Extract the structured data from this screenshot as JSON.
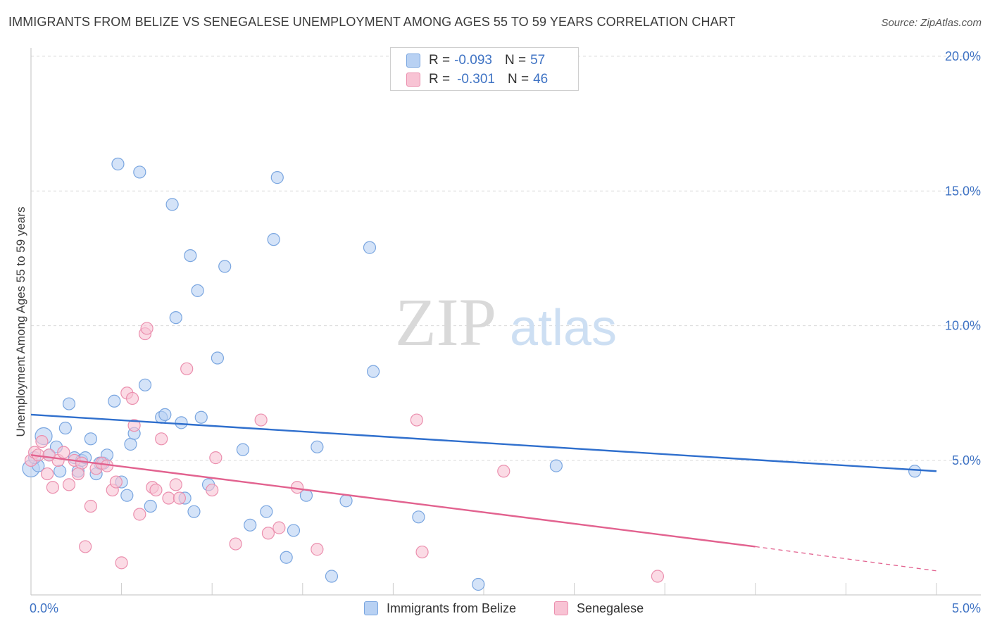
{
  "title": "IMMIGRANTS FROM BELIZE VS SENEGALESE UNEMPLOYMENT AMONG AGES 55 TO 59 YEARS CORRELATION CHART",
  "source": "Source: ZipAtlas.com",
  "watermark": {
    "zip": "ZIP",
    "atlas": "atlas"
  },
  "legend": {
    "rows": [
      {
        "r_label": "R =",
        "r_value": "-0.093",
        "n_label": "N =",
        "n_value": "57"
      },
      {
        "r_label": "R =",
        "r_value": "-0.301",
        "n_label": "N =",
        "n_value": "46"
      }
    ]
  },
  "bottom_legend": {
    "series1": "Immigrants from Belize",
    "series2": "Senegalese"
  },
  "colors": {
    "blue_fill": "#b8d1f3",
    "blue_stroke": "#7aa6e0",
    "blue_line": "#2f6fcd",
    "pink_fill": "#f8c3d4",
    "pink_stroke": "#eb8fae",
    "pink_line": "#e2628f",
    "axis_text": "#3f73c4",
    "grid": "#d9d9d9"
  },
  "chart_data": {
    "type": "scatter",
    "title": "IMMIGRANTS FROM BELIZE VS SENEGALESE UNEMPLOYMENT AMONG AGES 55 TO 59 YEARS CORRELATION CHART",
    "xlabel": "",
    "ylabel": "Unemployment Among Ages 55 to 59 years",
    "xlim": [
      0,
      5
    ],
    "ylim": [
      0,
      20
    ],
    "x_ticks": [
      "0.0%",
      "5.0%"
    ],
    "y_ticks": [
      {
        "value": 5,
        "label": "5.0%"
      },
      {
        "value": 10,
        "label": "10.0%"
      },
      {
        "value": 15,
        "label": "15.0%"
      },
      {
        "value": 20,
        "label": "20.0%"
      }
    ],
    "grid": true,
    "series": [
      {
        "name": "Immigrants from Belize",
        "r": -0.093,
        "n": 57,
        "trend": {
          "x": [
            0,
            5
          ],
          "y": [
            6.7,
            4.6
          ]
        },
        "points": [
          {
            "x": 0.0,
            "y": 4.7
          },
          {
            "x": 0.04,
            "y": 4.8
          },
          {
            "x": 0.07,
            "y": 5.9
          },
          {
            "x": 0.1,
            "y": 5.2
          },
          {
            "x": 0.14,
            "y": 5.5
          },
          {
            "x": 0.16,
            "y": 4.6
          },
          {
            "x": 0.19,
            "y": 6.2
          },
          {
            "x": 0.21,
            "y": 7.1
          },
          {
            "x": 0.24,
            "y": 5.1
          },
          {
            "x": 0.26,
            "y": 4.6
          },
          {
            "x": 0.28,
            "y": 5.0
          },
          {
            "x": 0.3,
            "y": 5.1
          },
          {
            "x": 0.33,
            "y": 5.8
          },
          {
            "x": 0.36,
            "y": 4.5
          },
          {
            "x": 0.38,
            "y": 4.9
          },
          {
            "x": 0.4,
            "y": 4.9
          },
          {
            "x": 0.42,
            "y": 5.2
          },
          {
            "x": 0.46,
            "y": 7.2
          },
          {
            "x": 0.48,
            "y": 16.0
          },
          {
            "x": 0.5,
            "y": 4.2
          },
          {
            "x": 0.53,
            "y": 3.7
          },
          {
            "x": 0.55,
            "y": 5.6
          },
          {
            "x": 0.57,
            "y": 6.0
          },
          {
            "x": 0.6,
            "y": 15.7
          },
          {
            "x": 0.63,
            "y": 7.8
          },
          {
            "x": 0.66,
            "y": 3.3
          },
          {
            "x": 0.72,
            "y": 6.6
          },
          {
            "x": 0.74,
            "y": 6.7
          },
          {
            "x": 0.78,
            "y": 14.5
          },
          {
            "x": 0.8,
            "y": 10.3
          },
          {
            "x": 0.83,
            "y": 6.4
          },
          {
            "x": 0.85,
            "y": 3.6
          },
          {
            "x": 0.88,
            "y": 12.6
          },
          {
            "x": 0.9,
            "y": 3.1
          },
          {
            "x": 0.92,
            "y": 11.3
          },
          {
            "x": 0.94,
            "y": 6.6
          },
          {
            "x": 0.98,
            "y": 4.1
          },
          {
            "x": 1.03,
            "y": 8.8
          },
          {
            "x": 1.07,
            "y": 12.2
          },
          {
            "x": 1.17,
            "y": 5.4
          },
          {
            "x": 1.21,
            "y": 2.6
          },
          {
            "x": 1.3,
            "y": 3.1
          },
          {
            "x": 1.34,
            "y": 13.2
          },
          {
            "x": 1.36,
            "y": 15.5
          },
          {
            "x": 1.41,
            "y": 1.4
          },
          {
            "x": 1.45,
            "y": 2.4
          },
          {
            "x": 1.52,
            "y": 3.7
          },
          {
            "x": 1.58,
            "y": 5.5
          },
          {
            "x": 1.66,
            "y": 0.7
          },
          {
            "x": 1.74,
            "y": 3.5
          },
          {
            "x": 1.87,
            "y": 12.9
          },
          {
            "x": 1.89,
            "y": 8.3
          },
          {
            "x": 2.14,
            "y": 2.9
          },
          {
            "x": 2.47,
            "y": 0.4
          },
          {
            "x": 2.9,
            "y": 4.8
          },
          {
            "x": 4.88,
            "y": 4.6
          },
          {
            "x": 0.02,
            "y": 5.1
          }
        ]
      },
      {
        "name": "Senegalese",
        "r": -0.301,
        "n": 46,
        "trend": {
          "x": [
            0,
            4.0
          ],
          "y": [
            5.2,
            1.8
          ]
        },
        "trend_dashed": {
          "x": [
            4.0,
            5
          ],
          "y": [
            1.8,
            0.9
          ]
        },
        "points": [
          {
            "x": 0.0,
            "y": 5.0
          },
          {
            "x": 0.02,
            "y": 5.3
          },
          {
            "x": 0.04,
            "y": 5.2
          },
          {
            "x": 0.06,
            "y": 5.7
          },
          {
            "x": 0.09,
            "y": 4.5
          },
          {
            "x": 0.12,
            "y": 4.0
          },
          {
            "x": 0.15,
            "y": 5.0
          },
          {
            "x": 0.18,
            "y": 5.3
          },
          {
            "x": 0.21,
            "y": 4.1
          },
          {
            "x": 0.24,
            "y": 5.0
          },
          {
            "x": 0.28,
            "y": 4.9
          },
          {
            "x": 0.3,
            "y": 1.8
          },
          {
            "x": 0.33,
            "y": 3.3
          },
          {
            "x": 0.36,
            "y": 4.7
          },
          {
            "x": 0.39,
            "y": 4.9
          },
          {
            "x": 0.42,
            "y": 4.8
          },
          {
            "x": 0.45,
            "y": 3.9
          },
          {
            "x": 0.47,
            "y": 4.2
          },
          {
            "x": 0.5,
            "y": 1.2
          },
          {
            "x": 0.53,
            "y": 7.5
          },
          {
            "x": 0.56,
            "y": 7.3
          },
          {
            "x": 0.57,
            "y": 6.3
          },
          {
            "x": 0.6,
            "y": 3.0
          },
          {
            "x": 0.63,
            "y": 9.7
          },
          {
            "x": 0.64,
            "y": 9.9
          },
          {
            "x": 0.67,
            "y": 4.0
          },
          {
            "x": 0.69,
            "y": 3.9
          },
          {
            "x": 0.72,
            "y": 5.8
          },
          {
            "x": 0.76,
            "y": 3.6
          },
          {
            "x": 0.8,
            "y": 4.1
          },
          {
            "x": 0.82,
            "y": 3.6
          },
          {
            "x": 0.86,
            "y": 8.4
          },
          {
            "x": 1.0,
            "y": 3.9
          },
          {
            "x": 1.02,
            "y": 5.1
          },
          {
            "x": 1.13,
            "y": 1.9
          },
          {
            "x": 1.27,
            "y": 6.5
          },
          {
            "x": 1.31,
            "y": 2.3
          },
          {
            "x": 1.37,
            "y": 2.5
          },
          {
            "x": 1.47,
            "y": 4.0
          },
          {
            "x": 1.58,
            "y": 1.7
          },
          {
            "x": 2.13,
            "y": 6.5
          },
          {
            "x": 2.16,
            "y": 1.6
          },
          {
            "x": 2.61,
            "y": 4.6
          },
          {
            "x": 3.46,
            "y": 0.7
          },
          {
            "x": 0.1,
            "y": 5.2
          },
          {
            "x": 0.26,
            "y": 4.5
          }
        ]
      }
    ]
  }
}
